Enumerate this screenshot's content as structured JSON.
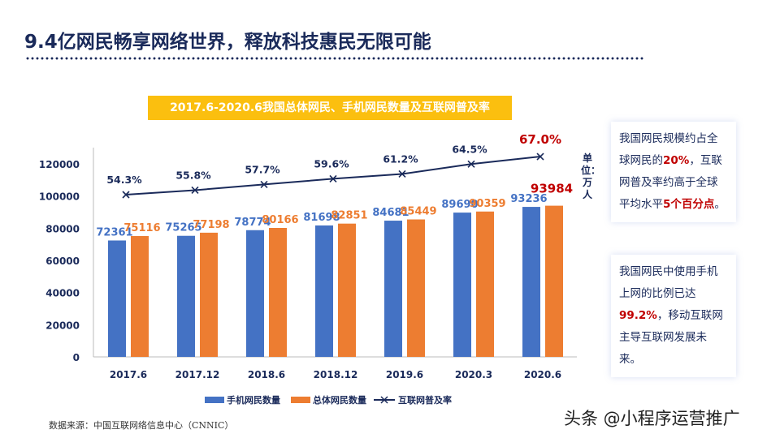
{
  "title": "9.4亿网民畅享网络世界，释放科技惠民无限可能",
  "chart_data": {
    "type": "bar",
    "title": "2017.6-2020.6我国总体网民、手机网民数量及互联网普及率",
    "categories": [
      "2017.6",
      "2017.12",
      "2018.6",
      "2018.12",
      "2019.6",
      "2020.3",
      "2020.6"
    ],
    "ylim": [
      0,
      120000
    ],
    "yticks": [
      "0",
      "20000",
      "40000",
      "60000",
      "80000",
      "100000",
      "120000"
    ],
    "unit": "单位：万人",
    "series": [
      {
        "name": "手机网民数量",
        "type": "bar",
        "color": "#4472c4",
        "values": [
          72361,
          75265,
          78774,
          81698,
          84681,
          89690,
          93236
        ]
      },
      {
        "name": "总体网民数量",
        "type": "bar",
        "color": "#ed7d31",
        "values": [
          75116,
          77198,
          80166,
          82851,
          85449,
          90359,
          93984
        ]
      },
      {
        "name": "互联网普及率",
        "type": "line",
        "color": "#1a2a5a",
        "values": [
          54.3,
          55.8,
          57.7,
          59.6,
          61.2,
          64.5,
          67.0
        ],
        "labels": [
          "54.3%",
          "55.8%",
          "57.7%",
          "59.6%",
          "61.2%",
          "64.5%",
          "67.0%"
        ]
      }
    ],
    "grid": false,
    "legend": "bottom"
  },
  "notes": {
    "box1": [
      "我国网民规模约占全球网民的",
      "20%",
      "，互联网普及率约高于全球平均水平",
      "5个百分点",
      "。"
    ],
    "box2": [
      "我国网民中使用手机上网的比例已达",
      "99.2%",
      "，移动互联网主导互联网发展未来。"
    ]
  },
  "source": "数据来源：中国互联网络信息中心（CNNIC）",
  "watermark": "头条 @小程序运营推广"
}
